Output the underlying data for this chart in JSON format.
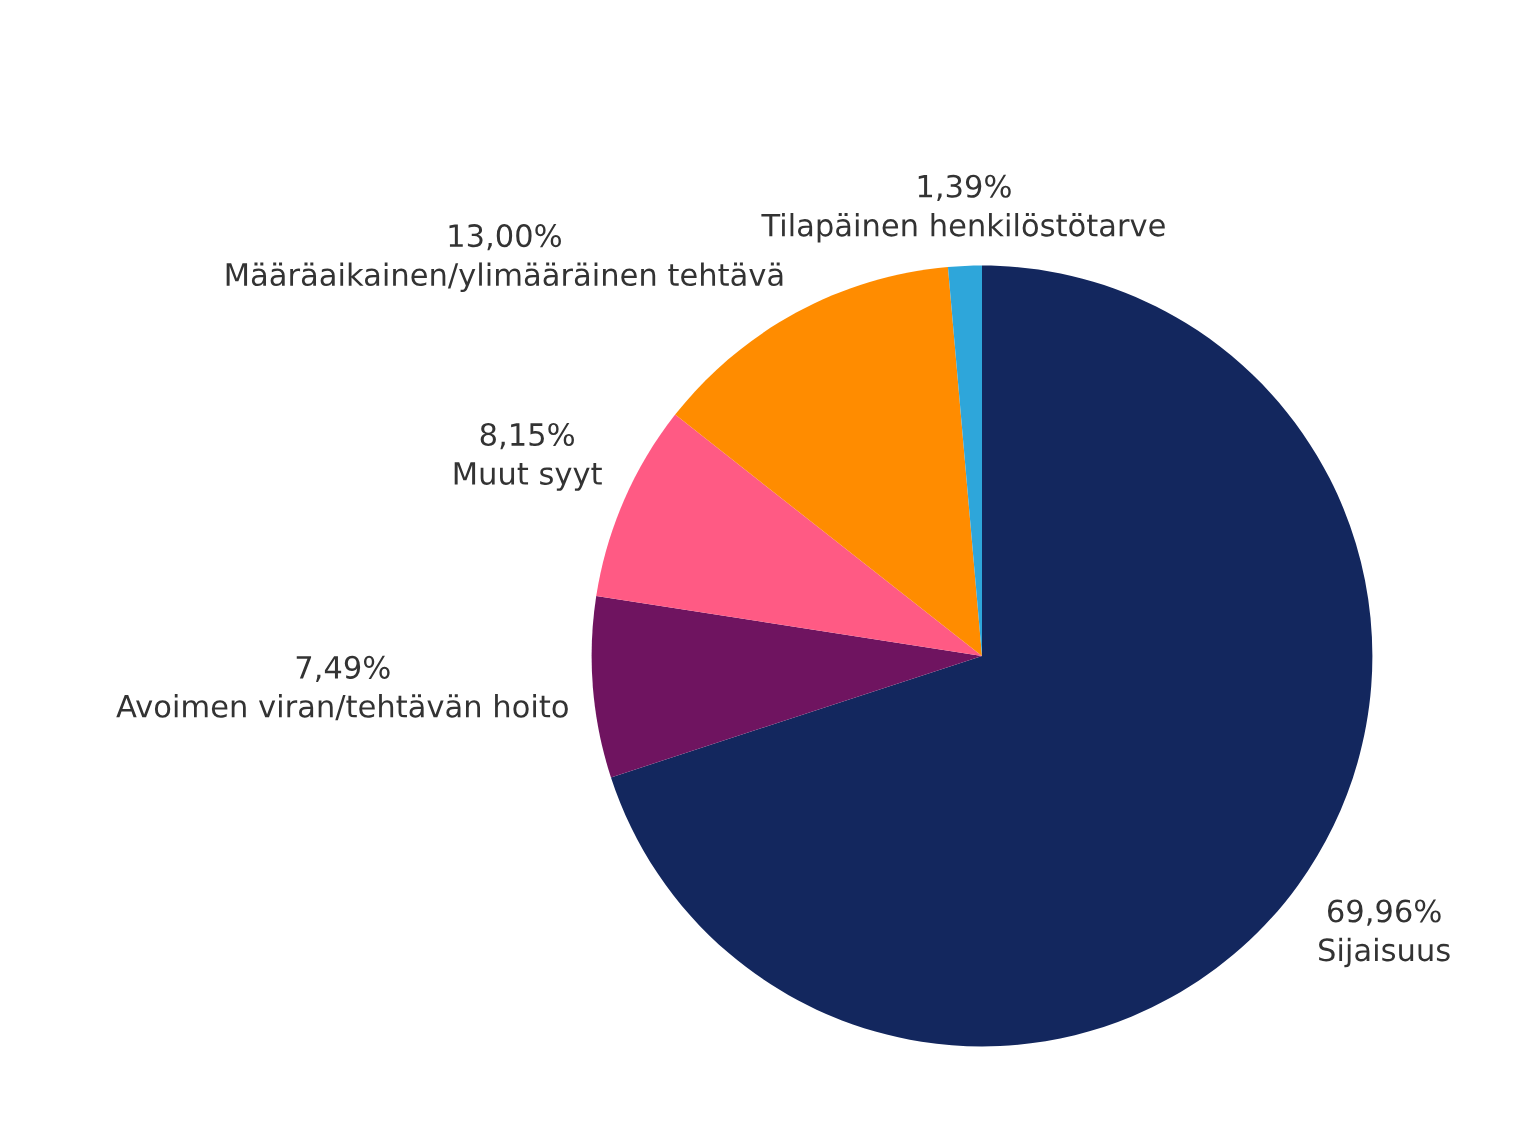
{
  "chart_data": {
    "type": "pie",
    "categories": [
      "Sijaisuus",
      "Avoimen viran/tehtävän hoito",
      "Muut syyt",
      "Määräaikainen/ylimääräinen tehtävä",
      "Tilapäinen henkilöstötarve"
    ],
    "values": [
      69.96,
      7.49,
      8.15,
      13.0,
      1.39
    ],
    "value_labels": [
      "69,96%",
      "7,49%",
      "8,15%",
      "13,00%",
      "1,39%"
    ],
    "colors": [
      "#13275e",
      "#6f1460",
      "#ff5a84",
      "#ff8c00",
      "#2ea6da"
    ],
    "legend": false
  }
}
